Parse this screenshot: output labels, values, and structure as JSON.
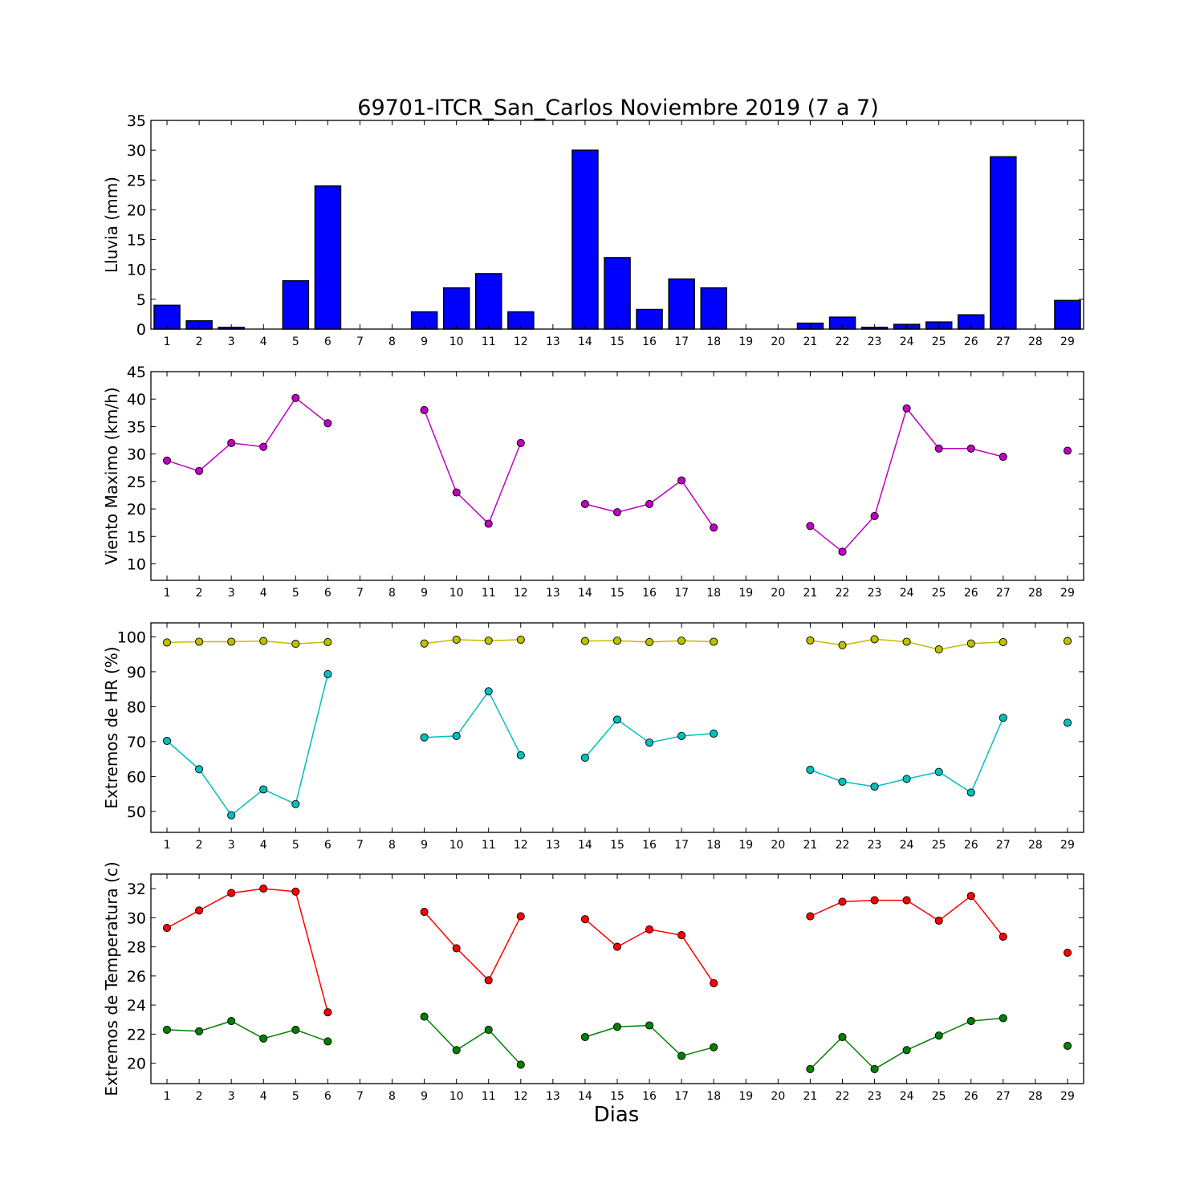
{
  "figure": {
    "title": "69701-ITCR_San_Carlos Noviembre 2019  (7 a 7)",
    "xlabel": "Dias"
  },
  "chart_data": [
    {
      "type": "bar",
      "ylabel": "Lluvia (mm)",
      "ylim": [
        0,
        35
      ],
      "yticks": [
        0,
        5,
        10,
        15,
        20,
        25,
        30,
        35
      ],
      "x": [
        1,
        2,
        3,
        4,
        5,
        6,
        7,
        8,
        9,
        10,
        11,
        12,
        13,
        14,
        15,
        16,
        17,
        18,
        19,
        20,
        21,
        22,
        23,
        24,
        25,
        26,
        27,
        28,
        29
      ],
      "series": [
        {
          "color": "#0000ff",
          "values": [
            4.0,
            1.4,
            0.3,
            0.0,
            8.1,
            24.0,
            0,
            0,
            2.9,
            6.9,
            9.3,
            2.9,
            0,
            30.0,
            12.0,
            3.3,
            8.4,
            6.9,
            0,
            0,
            1.0,
            2.0,
            0.3,
            0.8,
            1.2,
            2.4,
            28.9,
            0,
            4.8
          ]
        }
      ],
      "xlim": [
        0.5,
        29.5
      ]
    },
    {
      "type": "line",
      "ylabel": "Viento Maximo (km/h)",
      "ylim": [
        7,
        45
      ],
      "yticks": [
        10,
        15,
        20,
        25,
        30,
        35,
        40,
        45
      ],
      "x": [
        1,
        2,
        3,
        4,
        5,
        6,
        7,
        8,
        9,
        10,
        11,
        12,
        13,
        14,
        15,
        16,
        17,
        18,
        19,
        20,
        21,
        22,
        23,
        24,
        25,
        26,
        27,
        28,
        29
      ],
      "series": [
        {
          "color": "#bf00bf",
          "values": [
            28.8,
            26.9,
            32.0,
            31.3,
            40.2,
            35.6,
            null,
            null,
            38.0,
            23.0,
            17.3,
            32.0,
            null,
            20.9,
            19.4,
            20.9,
            25.2,
            16.6,
            null,
            null,
            16.9,
            12.2,
            18.7,
            38.3,
            31.0,
            31.0,
            29.5,
            null,
            30.6
          ]
        }
      ],
      "xlim": [
        0.5,
        29.5
      ]
    },
    {
      "type": "line",
      "ylabel": "Extremos de HR (%)",
      "ylim": [
        44,
        104
      ],
      "yticks": [
        50,
        60,
        70,
        80,
        90,
        100
      ],
      "x": [
        1,
        2,
        3,
        4,
        5,
        6,
        7,
        8,
        9,
        10,
        11,
        12,
        13,
        14,
        15,
        16,
        17,
        18,
        19,
        20,
        21,
        22,
        23,
        24,
        25,
        26,
        27,
        28,
        29
      ],
      "series": [
        {
          "color": "#bfbf00",
          "values": [
            98.4,
            98.6,
            98.6,
            98.8,
            98.0,
            98.5,
            null,
            null,
            98.1,
            99.2,
            98.9,
            99.2,
            null,
            98.8,
            98.9,
            98.5,
            98.9,
            98.6,
            null,
            null,
            99.0,
            97.6,
            99.3,
            98.6,
            96.4,
            98.1,
            98.5,
            null,
            98.8
          ]
        },
        {
          "color": "#00bfbf",
          "values": [
            70.2,
            62.1,
            48.9,
            56.3,
            52.1,
            89.3,
            null,
            null,
            71.2,
            71.6,
            84.4,
            66.1,
            null,
            65.4,
            76.3,
            69.7,
            71.6,
            72.3,
            null,
            null,
            61.9,
            58.5,
            57.1,
            59.3,
            61.3,
            55.4,
            76.8,
            null,
            75.4
          ]
        }
      ],
      "xlim": [
        0.5,
        29.5
      ]
    },
    {
      "type": "line",
      "ylabel": "Extremos de Temperatura (c)",
      "ylim": [
        18.6,
        33
      ],
      "yticks": [
        20,
        22,
        24,
        26,
        28,
        30,
        32
      ],
      "x": [
        1,
        2,
        3,
        4,
        5,
        6,
        7,
        8,
        9,
        10,
        11,
        12,
        13,
        14,
        15,
        16,
        17,
        18,
        19,
        20,
        21,
        22,
        23,
        24,
        25,
        26,
        27,
        28,
        29
      ],
      "series": [
        {
          "color": "#ff0000",
          "values": [
            29.3,
            30.5,
            31.7,
            32.0,
            31.8,
            23.5,
            null,
            null,
            30.4,
            27.9,
            25.7,
            30.1,
            null,
            29.9,
            28.0,
            29.2,
            28.8,
            25.5,
            null,
            null,
            30.1,
            31.1,
            31.2,
            31.2,
            29.8,
            31.5,
            28.7,
            null,
            27.6
          ]
        },
        {
          "color": "#008000",
          "values": [
            22.3,
            22.2,
            22.9,
            21.7,
            22.3,
            21.5,
            null,
            null,
            23.2,
            20.9,
            22.3,
            19.9,
            null,
            21.8,
            22.5,
            22.6,
            20.5,
            21.1,
            null,
            null,
            19.6,
            21.8,
            19.6,
            20.9,
            21.9,
            22.9,
            23.1,
            null,
            21.2
          ]
        }
      ],
      "xlim": [
        0.5,
        29.5
      ]
    }
  ]
}
